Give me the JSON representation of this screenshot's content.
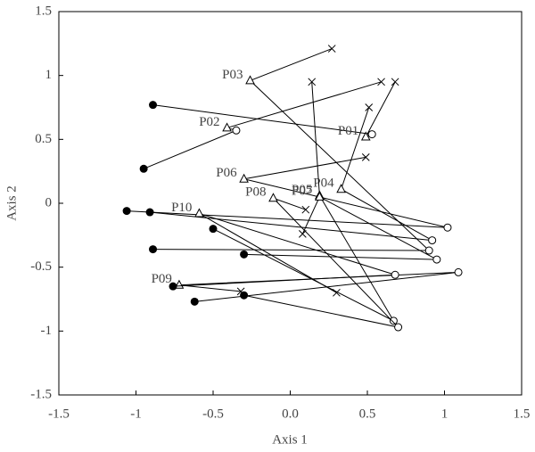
{
  "chart_data": {
    "type": "scatter",
    "x_label": "Axis 1",
    "y_label": "Axis 2",
    "xlim": [
      -1.5,
      1.5
    ],
    "ylim": [
      -1.5,
      1.5
    ],
    "xticks": [
      -1.5,
      -1,
      -0.5,
      {
        "value": 0,
        "label": "0.0"
      },
      0.5,
      1,
      1.5
    ],
    "yticks": [
      -1.5,
      -1,
      -0.5,
      0,
      0.5,
      1,
      1.5
    ],
    "grid": false,
    "color": "#000000",
    "markers": [
      "filled circle",
      "open circle",
      "triangle",
      "x"
    ],
    "series": [
      {
        "name": "P01",
        "x": [
          -0.89,
          0.53,
          0.49,
          0.68
        ],
        "y": [
          0.77,
          0.54,
          0.52,
          0.95
        ]
      },
      {
        "name": "P02",
        "x": [
          -0.95,
          -0.35,
          -0.41,
          0.59
        ],
        "y": [
          0.27,
          0.57,
          0.59,
          0.95
        ]
      },
      {
        "name": "P03",
        "x": [
          -0.89,
          0.9,
          -0.26,
          0.27
        ],
        "y": [
          -0.36,
          -0.37,
          0.96,
          1.21
        ]
      },
      {
        "name": "P04",
        "x": [
          -0.91,
          0.92,
          0.33,
          0.51
        ],
        "y": [
          -0.07,
          -0.29,
          0.11,
          0.75
        ]
      },
      {
        "name": "P05",
        "x": [
          -0.5,
          0.67,
          0.19,
          0.14
        ],
        "y": [
          -0.2,
          -0.92,
          0.06,
          0.95
        ]
      },
      {
        "name": "P06",
        "x": [
          -1.06,
          1.02,
          -0.3,
          0.49
        ],
        "y": [
          -0.06,
          -0.19,
          0.19,
          0.36
        ]
      },
      {
        "name": "P07",
        "x": [
          -0.3,
          0.95,
          0.19,
          0.08
        ],
        "y": [
          -0.4,
          -0.44,
          0.05,
          -0.24
        ]
      },
      {
        "name": "P08",
        "x": [
          -0.3,
          0.7,
          -0.11,
          0.1
        ],
        "y": [
          -0.72,
          -0.97,
          0.04,
          -0.05
        ]
      },
      {
        "name": "P09",
        "x": [
          -0.62,
          1.09,
          -0.72,
          -0.32
        ],
        "y": [
          -0.77,
          -0.54,
          -0.64,
          -0.69
        ]
      },
      {
        "name": "P10",
        "x": [
          -0.76,
          0.68,
          -0.59,
          0.3
        ],
        "y": [
          -0.65,
          -0.56,
          -0.08,
          -0.7
        ]
      }
    ]
  }
}
